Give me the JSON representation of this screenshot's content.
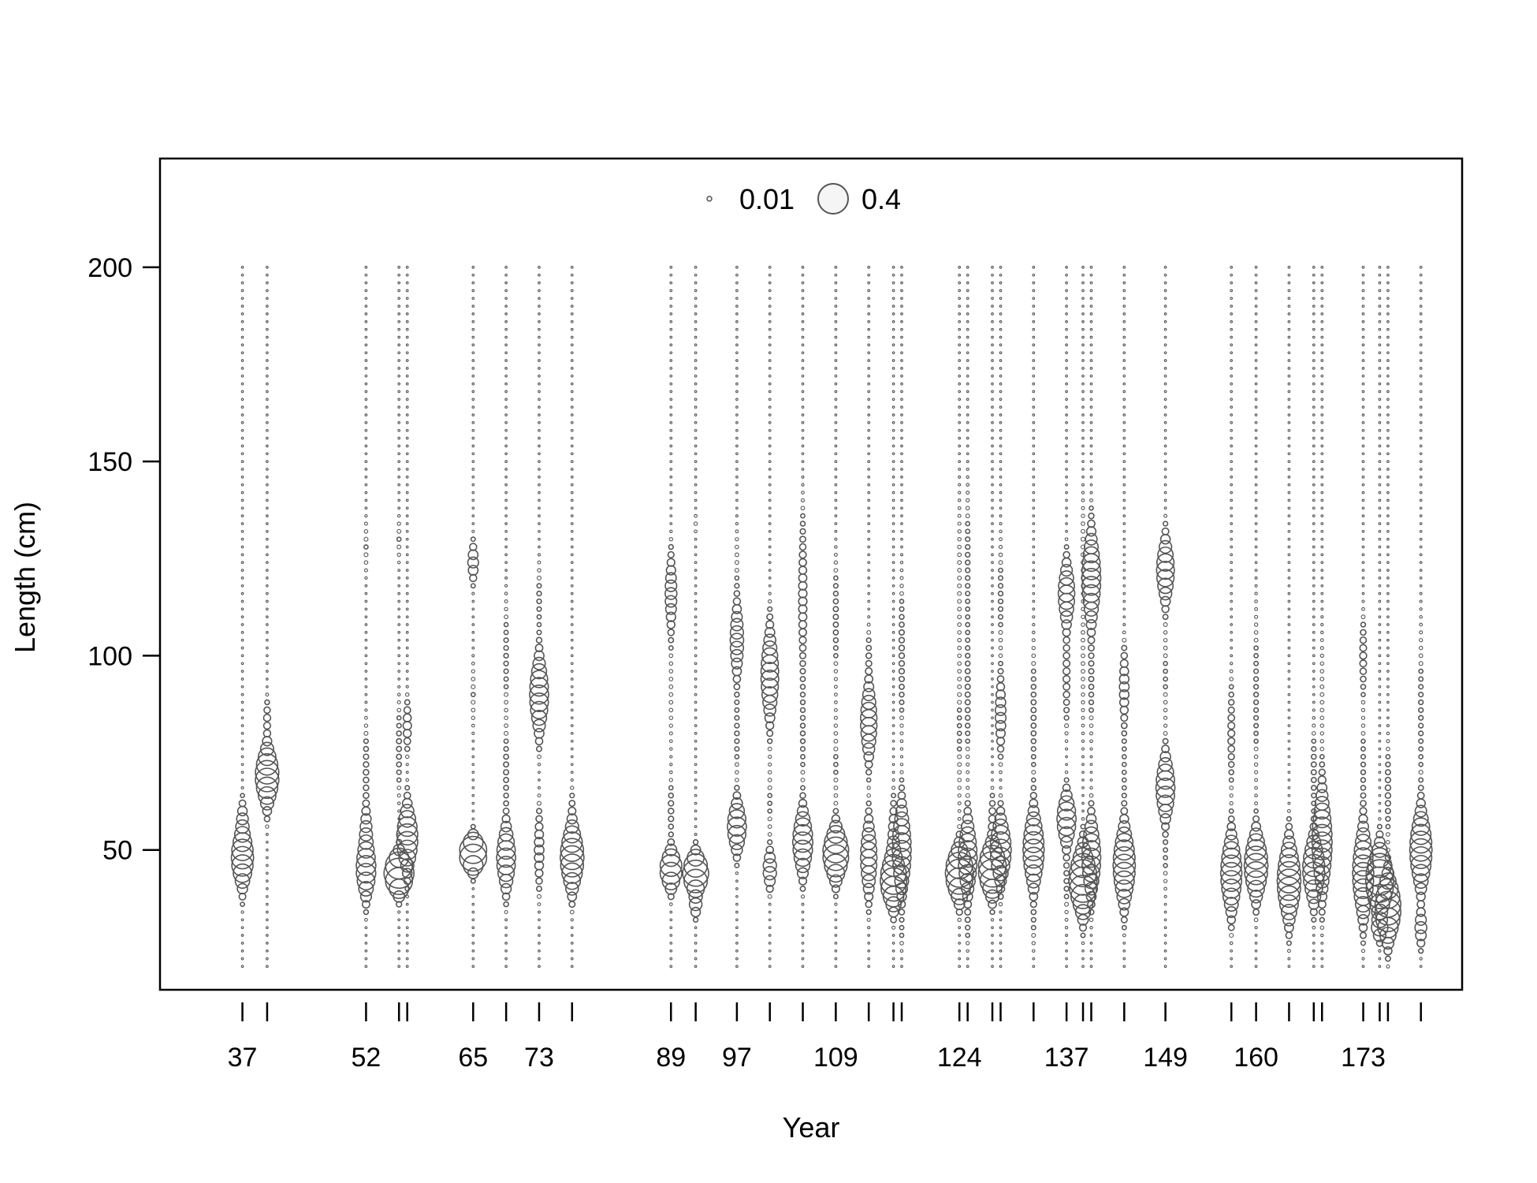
{
  "chart_data": {
    "type": "scatter",
    "subtype": "bubble",
    "title": "",
    "xlabel": "Year",
    "ylabel": "Length (cm)",
    "xlim": [
      27,
      185
    ],
    "ylim": [
      14,
      228
    ],
    "y_ticks": [
      50,
      100,
      150,
      200
    ],
    "x_tick_marks": [
      37,
      40,
      52,
      56,
      57,
      65,
      69,
      73,
      77,
      89,
      92,
      97,
      101,
      105,
      109,
      113,
      116,
      117,
      124,
      125,
      128,
      129,
      133,
      137,
      139,
      140,
      144,
      149,
      157,
      160,
      164,
      167,
      168,
      173,
      175,
      176,
      180
    ],
    "x_tick_labels": [
      "37",
      "52",
      "65",
      "73",
      "89",
      "97",
      "109",
      "124",
      "137",
      "149",
      "160",
      "173"
    ],
    "legend": {
      "placement": "top-center",
      "entries": [
        {
          "label": "0.01",
          "value": 0.01
        },
        {
          "label": "0.4",
          "value": 0.4
        }
      ]
    },
    "length_bins": {
      "min": 20,
      "max": 200,
      "step": 2
    },
    "point_color": "#555555",
    "grid": false,
    "series": [
      {
        "year": 37,
        "peaks": [
          [
            48,
            4.5,
            0.22
          ],
          [
            58,
            3,
            0.04
          ]
        ]
      },
      {
        "year": 40,
        "peaks": [
          [
            69,
            4.5,
            0.25
          ],
          [
            84,
            3,
            0.02
          ]
        ]
      },
      {
        "year": 52,
        "peaks": [
          [
            45,
            4.5,
            0.17
          ],
          [
            55,
            4,
            0.05
          ],
          [
            70,
            8,
            0.012
          ],
          [
            128,
            5,
            0.006
          ]
        ]
      },
      {
        "year": 56,
        "peaks": [
          [
            44,
            3,
            0.4
          ],
          [
            76,
            8,
            0.01
          ],
          [
            130,
            4,
            0.006
          ]
        ]
      },
      {
        "year": 57,
        "peaks": [
          [
            53,
            5,
            0.2
          ],
          [
            82,
            4,
            0.03
          ]
        ]
      },
      {
        "year": 65,
        "peaks": [
          [
            49,
            2.5,
            0.35
          ],
          [
            124,
            3,
            0.05
          ],
          [
            90,
            6,
            0.006
          ]
        ]
      },
      {
        "year": 69,
        "peaks": [
          [
            48,
            5,
            0.16
          ],
          [
            100,
            10,
            0.008
          ],
          [
            70,
            8,
            0.01
          ]
        ]
      },
      {
        "year": 73,
        "peaks": [
          [
            90,
            6,
            0.16
          ],
          [
            50,
            6,
            0.04
          ],
          [
            115,
            6,
            0.008
          ]
        ]
      },
      {
        "year": 77,
        "peaks": [
          [
            48,
            5,
            0.25
          ],
          [
            60,
            4,
            0.01
          ]
        ]
      },
      {
        "year": 89,
        "peaks": [
          [
            45,
            3,
            0.22
          ],
          [
            116,
            6,
            0.06
          ],
          [
            60,
            5,
            0.012
          ],
          [
            90,
            10,
            0.005
          ]
        ]
      },
      {
        "year": 92,
        "peaks": [
          [
            44,
            3,
            0.3
          ],
          [
            36,
            2,
            0.06
          ],
          [
            134,
            2,
            0.004
          ]
        ]
      },
      {
        "year": 97,
        "peaks": [
          [
            56,
            4,
            0.16
          ],
          [
            104,
            6,
            0.08
          ],
          [
            80,
            8,
            0.008
          ],
          [
            125,
            6,
            0.005
          ]
        ]
      },
      {
        "year": 101,
        "peaks": [
          [
            95,
            7,
            0.14
          ],
          [
            45,
            3,
            0.08
          ],
          [
            62,
            8,
            0.006
          ]
        ]
      },
      {
        "year": 105,
        "peaks": [
          [
            52,
            5,
            0.18
          ],
          [
            115,
            12,
            0.03
          ],
          [
            80,
            10,
            0.008
          ]
        ]
      },
      {
        "year": 109,
        "peaks": [
          [
            49,
            4,
            0.3
          ],
          [
            110,
            10,
            0.01
          ],
          [
            72,
            10,
            0.006
          ]
        ]
      },
      {
        "year": 113,
        "peaks": [
          [
            48,
            6,
            0.12
          ],
          [
            83,
            6,
            0.12
          ],
          [
            100,
            5,
            0.01
          ]
        ]
      },
      {
        "year": 116,
        "peaks": [
          [
            42,
            4,
            0.3
          ],
          [
            52,
            6,
            0.05
          ]
        ]
      },
      {
        "year": 117,
        "peaks": [
          [
            50,
            7,
            0.16
          ],
          [
            100,
            12,
            0.012
          ],
          [
            28,
            3,
            0.005
          ]
        ]
      },
      {
        "year": 124,
        "peaks": [
          [
            44,
            4,
            0.35
          ],
          [
            80,
            15,
            0.006
          ],
          [
            120,
            15,
            0.005
          ]
        ]
      },
      {
        "year": 125,
        "peaks": [
          [
            48,
            6,
            0.16
          ],
          [
            90,
            12,
            0.01
          ],
          [
            125,
            12,
            0.008
          ],
          [
            30,
            4,
            0.006
          ]
        ]
      },
      {
        "year": 128,
        "peaks": [
          [
            45,
            4,
            0.35
          ],
          [
            58,
            4,
            0.02
          ]
        ]
      },
      {
        "year": 129,
        "peaks": [
          [
            50,
            5,
            0.2
          ],
          [
            85,
            6,
            0.05
          ],
          [
            115,
            10,
            0.008
          ]
        ]
      },
      {
        "year": 133,
        "peaks": [
          [
            50,
            6,
            0.2
          ],
          [
            85,
            12,
            0.01
          ],
          [
            30,
            4,
            0.006
          ]
        ]
      },
      {
        "year": 137,
        "peaks": [
          [
            116,
            5,
            0.12
          ],
          [
            58,
            4,
            0.16
          ],
          [
            95,
            8,
            0.02
          ],
          [
            45,
            8,
            0.01
          ]
        ]
      },
      {
        "year": 139,
        "peaks": [
          [
            42,
            5,
            0.35
          ],
          [
            100,
            15,
            0.005
          ],
          [
            130,
            8,
            0.005
          ]
        ]
      },
      {
        "year": 140,
        "peaks": [
          [
            120,
            7,
            0.16
          ],
          [
            48,
            6,
            0.16
          ],
          [
            95,
            10,
            0.01
          ]
        ]
      },
      {
        "year": 144,
        "peaks": [
          [
            46,
            6,
            0.22
          ],
          [
            92,
            6,
            0.04
          ],
          [
            70,
            10,
            0.006
          ]
        ]
      },
      {
        "year": 149,
        "peaks": [
          [
            122,
            5,
            0.14
          ],
          [
            66,
            5,
            0.16
          ],
          [
            95,
            10,
            0.006
          ],
          [
            48,
            6,
            0.006
          ]
        ]
      },
      {
        "year": 157,
        "peaks": [
          [
            44,
            6,
            0.2
          ],
          [
            80,
            8,
            0.02
          ]
        ]
      },
      {
        "year": 160,
        "peaks": [
          [
            46,
            5,
            0.25
          ],
          [
            90,
            15,
            0.008
          ]
        ]
      },
      {
        "year": 164,
        "peaks": [
          [
            42,
            6,
            0.25
          ]
        ]
      },
      {
        "year": 167,
        "peaks": [
          [
            45,
            5,
            0.22
          ],
          [
            70,
            8,
            0.01
          ]
        ]
      },
      {
        "year": 168,
        "peaks": [
          [
            52,
            8,
            0.18
          ],
          [
            90,
            12,
            0.005
          ]
        ]
      },
      {
        "year": 173,
        "peaks": [
          [
            44,
            7,
            0.2
          ],
          [
            100,
            6,
            0.02
          ],
          [
            70,
            10,
            0.008
          ]
        ]
      },
      {
        "year": 175,
        "peaks": [
          [
            42,
            5,
            0.35
          ],
          [
            30,
            2,
            0.1
          ]
        ]
      },
      {
        "year": 176,
        "peaks": [
          [
            35,
            5,
            0.3
          ],
          [
            65,
            8,
            0.012
          ]
        ]
      },
      {
        "year": 180,
        "peaks": [
          [
            50,
            6,
            0.22
          ],
          [
            85,
            15,
            0.008
          ],
          [
            30,
            3,
            0.06
          ]
        ]
      }
    ]
  }
}
